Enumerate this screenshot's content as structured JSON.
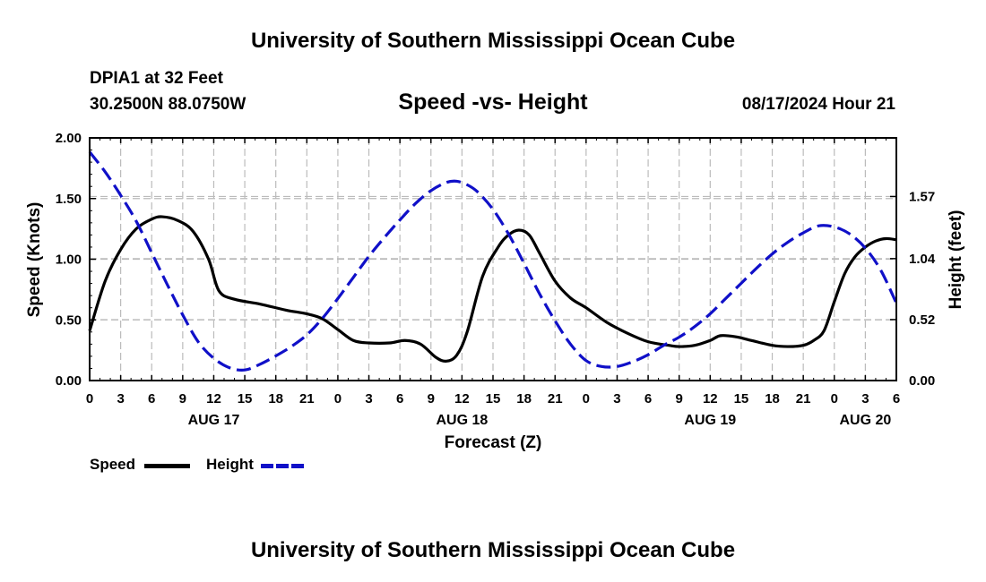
{
  "header": {
    "title": "University of Southern Mississippi Ocean Cube",
    "station": "DPIA1 at 32 Feet",
    "location": "30.2500N  88.0750W",
    "subtitle": "Speed -vs- Height",
    "datetime": "08/17/2024 Hour 21",
    "footer_title": "University of Southern Mississippi Ocean Cube"
  },
  "legend": {
    "speed_label": "Speed",
    "height_label": "Height"
  },
  "colors": {
    "speed": "#000000",
    "height": "#1010c8",
    "grid": "#bbbbbb"
  },
  "chart_data": {
    "type": "line",
    "xlabel": "Forecast (Z)",
    "ylabel_left": "Speed (Knots)",
    "ylabel_right": "Height (feet)",
    "x_unit": "hours from AUG 17 00Z",
    "xlim": [
      0,
      78
    ],
    "ylim_left": [
      0,
      2.0
    ],
    "ylim_right": [
      0,
      2.07
    ],
    "x_ticks": [
      {
        "x": 0,
        "label": "0"
      },
      {
        "x": 3,
        "label": "3"
      },
      {
        "x": 6,
        "label": "6"
      },
      {
        "x": 9,
        "label": "9"
      },
      {
        "x": 12,
        "label": "12"
      },
      {
        "x": 15,
        "label": "15"
      },
      {
        "x": 18,
        "label": "18"
      },
      {
        "x": 21,
        "label": "21"
      },
      {
        "x": 24,
        "label": "0"
      },
      {
        "x": 27,
        "label": "3"
      },
      {
        "x": 30,
        "label": "6"
      },
      {
        "x": 33,
        "label": "9"
      },
      {
        "x": 36,
        "label": "12"
      },
      {
        "x": 39,
        "label": "15"
      },
      {
        "x": 42,
        "label": "18"
      },
      {
        "x": 45,
        "label": "21"
      },
      {
        "x": 48,
        "label": "0"
      },
      {
        "x": 51,
        "label": "3"
      },
      {
        "x": 54,
        "label": "6"
      },
      {
        "x": 57,
        "label": "9"
      },
      {
        "x": 60,
        "label": "12"
      },
      {
        "x": 63,
        "label": "15"
      },
      {
        "x": 66,
        "label": "18"
      },
      {
        "x": 69,
        "label": "21"
      },
      {
        "x": 72,
        "label": "0"
      },
      {
        "x": 75,
        "label": "3"
      },
      {
        "x": 78,
        "label": "6"
      }
    ],
    "day_labels": [
      {
        "x": 12,
        "label": "AUG 17"
      },
      {
        "x": 36,
        "label": "AUG 18"
      },
      {
        "x": 60,
        "label": "AUG 19"
      },
      {
        "x": 75,
        "label": "AUG 20"
      }
    ],
    "y_ticks_left": [
      {
        "y": 0.0,
        "label": "0.00"
      },
      {
        "y": 0.5,
        "label": "0.50"
      },
      {
        "y": 1.0,
        "label": "1.00"
      },
      {
        "y": 1.5,
        "label": "1.50"
      },
      {
        "y": 2.0,
        "label": "2.00"
      }
    ],
    "y_ticks_right": [
      {
        "y": 0.0,
        "label": "0.00"
      },
      {
        "y": 0.52,
        "label": "0.52"
      },
      {
        "y": 1.04,
        "label": "1.04"
      },
      {
        "y": 1.57,
        "label": "1.57"
      }
    ],
    "series": [
      {
        "name": "Speed",
        "axis": "left",
        "style": "solid",
        "x": [
          0,
          1.5,
          3,
          4.5,
          6,
          7,
          8.5,
          10,
          11.5,
          12.5,
          14,
          16.5,
          19,
          21,
          22.5,
          24,
          25.5,
          27,
          29,
          30.5,
          32,
          33.5,
          34.5,
          35.5,
          36.5,
          38,
          39.5,
          40.5,
          41.5,
          42.5,
          43.5,
          45,
          46.5,
          48,
          50,
          52,
          54,
          56,
          57,
          58.5,
          60,
          61,
          62.5,
          64,
          66,
          67.5,
          69,
          70,
          71,
          72,
          73,
          74,
          75,
          76,
          77,
          78
        ],
        "values": [
          0.41,
          0.82,
          1.08,
          1.25,
          1.33,
          1.35,
          1.32,
          1.23,
          1.0,
          0.74,
          0.67,
          0.63,
          0.58,
          0.55,
          0.51,
          0.42,
          0.33,
          0.31,
          0.31,
          0.33,
          0.3,
          0.19,
          0.16,
          0.21,
          0.4,
          0.86,
          1.1,
          1.2,
          1.24,
          1.2,
          1.05,
          0.82,
          0.68,
          0.6,
          0.48,
          0.39,
          0.32,
          0.29,
          0.28,
          0.29,
          0.33,
          0.37,
          0.36,
          0.33,
          0.29,
          0.28,
          0.29,
          0.33,
          0.41,
          0.65,
          0.88,
          1.02,
          1.1,
          1.15,
          1.17,
          1.16
        ]
      },
      {
        "name": "Height",
        "axis": "right",
        "style": "dashed",
        "x": [
          0,
          1.5,
          3,
          4.5,
          6,
          7.5,
          9,
          10.5,
          12,
          13.5,
          15,
          16.5,
          18,
          19.5,
          21,
          22.5,
          24,
          25.5,
          27,
          28.5,
          30,
          31.5,
          33,
          34.5,
          35.5,
          36.5,
          37.5,
          39,
          40.5,
          42,
          43.5,
          45,
          46.5,
          48,
          49.5,
          51,
          52.5,
          54,
          55.5,
          57,
          58.5,
          60,
          61.5,
          63,
          64.5,
          66,
          67.5,
          69,
          70.5,
          72,
          73.5,
          75,
          76.5,
          78
        ],
        "values": [
          1.95,
          1.78,
          1.58,
          1.36,
          1.09,
          0.82,
          0.56,
          0.33,
          0.19,
          0.11,
          0.09,
          0.14,
          0.21,
          0.29,
          0.39,
          0.53,
          0.7,
          0.88,
          1.06,
          1.22,
          1.37,
          1.51,
          1.62,
          1.69,
          1.7,
          1.67,
          1.61,
          1.46,
          1.25,
          1.0,
          0.74,
          0.51,
          0.31,
          0.17,
          0.12,
          0.12,
          0.16,
          0.22,
          0.3,
          0.37,
          0.46,
          0.57,
          0.7,
          0.83,
          0.96,
          1.08,
          1.18,
          1.26,
          1.32,
          1.31,
          1.25,
          1.13,
          0.94,
          0.66
        ]
      }
    ]
  }
}
